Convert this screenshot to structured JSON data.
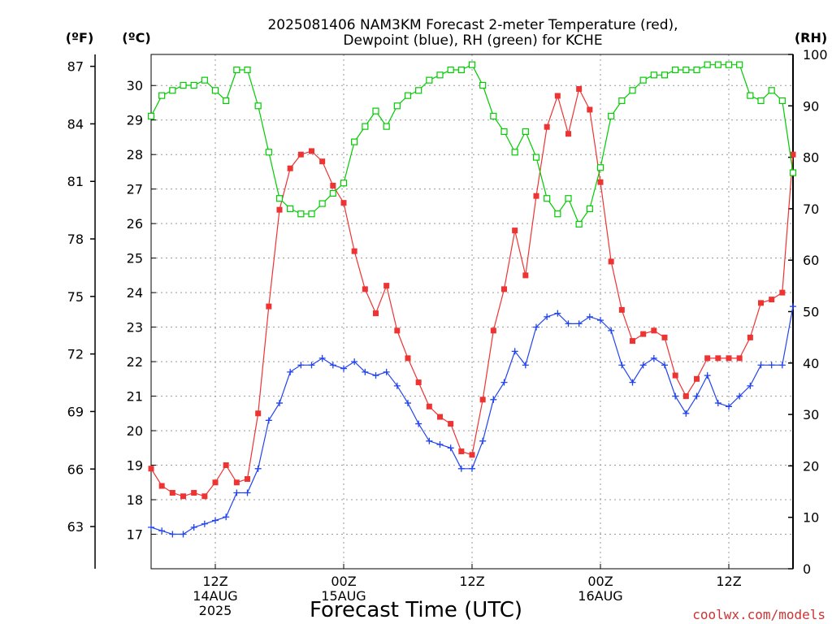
{
  "chart_data": {
    "type": "line",
    "title_line1": "2025081406 NAM3KM Forecast 2-meter Temperature (red),",
    "title_line2": "Dewpoint (blue), RH (green) for KCHE",
    "xlabel": "Forecast Time (UTC)",
    "credit": "coolwx.com/models",
    "axes": {
      "fahrenheit": {
        "label": "(ºF)",
        "ticks": [
          63,
          66,
          69,
          72,
          75,
          78,
          81,
          84,
          87
        ]
      },
      "celsius": {
        "label": "(ºC)",
        "ticks": [
          17,
          18,
          19,
          20,
          21,
          22,
          23,
          24,
          25,
          26,
          27,
          28,
          29,
          30
        ],
        "ylim": [
          16.0,
          30.9
        ]
      },
      "rh": {
        "label": "(RH)",
        "ticks": [
          0,
          10,
          20,
          30,
          40,
          50,
          60,
          70,
          80,
          90,
          100
        ],
        "ylim": [
          0,
          100
        ]
      }
    },
    "x_range_hours": [
      0,
      60
    ],
    "x_ticks": [
      {
        "hour": 6,
        "lines": [
          "12Z",
          "14AUG",
          "2025"
        ]
      },
      {
        "hour": 18,
        "lines": [
          "00Z",
          "15AUG"
        ]
      },
      {
        "hour": 30,
        "lines": [
          "12Z"
        ]
      },
      {
        "hour": 42,
        "lines": [
          "00Z",
          "16AUG"
        ]
      },
      {
        "hour": 54,
        "lines": [
          "12Z"
        ]
      }
    ],
    "grid": true,
    "colors": {
      "temperature": "#ee3333",
      "dewpoint": "#2244ee",
      "rh": "#00cc00",
      "grid": "#999999"
    },
    "series": [
      {
        "key": "temperature",
        "unit": "C",
        "marker": "filled-square",
        "hours": [
          0,
          1,
          2,
          3,
          4,
          5,
          6,
          7,
          8,
          9,
          10,
          11,
          12,
          13,
          14,
          15,
          16,
          17,
          18,
          19,
          20,
          21,
          22,
          23,
          24,
          25,
          26,
          27,
          28,
          29,
          30,
          31,
          32,
          33,
          34,
          35,
          36,
          37,
          38,
          39,
          40,
          41,
          42,
          43,
          44,
          45,
          46,
          47,
          48,
          49,
          50,
          51,
          52,
          53,
          54,
          55,
          56,
          57,
          58,
          59,
          60
        ],
        "values": [
          18.9,
          18.4,
          18.2,
          18.1,
          18.2,
          18.1,
          18.5,
          19.0,
          18.5,
          18.6,
          20.5,
          23.6,
          26.4,
          27.6,
          28.0,
          28.1,
          27.8,
          27.1,
          26.6,
          25.2,
          24.1,
          23.4,
          24.2,
          22.9,
          22.1,
          21.4,
          20.7,
          20.4,
          20.2,
          19.4,
          19.3,
          20.9,
          22.9,
          24.1,
          25.8,
          24.5,
          26.8,
          28.8,
          29.7,
          28.6,
          29.9,
          29.3,
          27.2,
          24.9,
          23.5,
          22.6,
          22.8,
          22.9,
          22.7,
          21.6,
          21.0,
          21.5,
          22.1,
          22.1,
          22.1,
          22.1,
          22.7,
          23.7,
          23.8,
          24.0,
          28.0
        ]
      },
      {
        "key": "dewpoint",
        "unit": "C",
        "marker": "plus",
        "hours": [
          0,
          1,
          2,
          3,
          4,
          5,
          6,
          7,
          8,
          9,
          10,
          11,
          12,
          13,
          14,
          15,
          16,
          17,
          18,
          19,
          20,
          21,
          22,
          23,
          24,
          25,
          26,
          27,
          28,
          29,
          30,
          31,
          32,
          33,
          34,
          35,
          36,
          37,
          38,
          39,
          40,
          41,
          42,
          43,
          44,
          45,
          46,
          47,
          48,
          49,
          50,
          51,
          52,
          53,
          54,
          55,
          56,
          57,
          58,
          59,
          60
        ],
        "values": [
          17.2,
          17.1,
          17.0,
          17.0,
          17.2,
          17.3,
          17.4,
          17.5,
          18.2,
          18.2,
          18.9,
          20.3,
          20.8,
          21.7,
          21.9,
          21.9,
          22.1,
          21.9,
          21.8,
          22.0,
          21.7,
          21.6,
          21.7,
          21.3,
          20.8,
          20.2,
          19.7,
          19.6,
          19.5,
          18.9,
          18.9,
          19.7,
          20.9,
          21.4,
          22.3,
          21.9,
          23.0,
          23.3,
          23.4,
          23.1,
          23.1,
          23.3,
          23.2,
          22.9,
          21.9,
          21.4,
          21.9,
          22.1,
          21.9,
          21.0,
          20.5,
          21.0,
          21.6,
          20.8,
          20.7,
          21.0,
          21.3,
          21.9,
          21.9,
          21.9,
          23.6
        ]
      },
      {
        "key": "rh",
        "unit": "%",
        "marker": "open-square",
        "hours": [
          0,
          1,
          2,
          3,
          4,
          5,
          6,
          7,
          8,
          9,
          10,
          11,
          12,
          13,
          14,
          15,
          16,
          17,
          18,
          19,
          20,
          21,
          22,
          23,
          24,
          25,
          26,
          27,
          28,
          29,
          30,
          31,
          32,
          33,
          34,
          35,
          36,
          37,
          38,
          39,
          40,
          41,
          42,
          43,
          44,
          45,
          46,
          47,
          48,
          49,
          50,
          51,
          52,
          53,
          54,
          55,
          56,
          57,
          58,
          59,
          60
        ],
        "values": [
          88,
          92,
          93,
          94,
          94,
          95,
          93,
          91,
          97,
          97,
          90,
          81,
          72,
          70,
          69,
          69,
          71,
          73,
          75,
          83,
          86,
          89,
          86,
          90,
          92,
          93,
          95,
          96,
          97,
          97,
          98,
          94,
          88,
          85,
          81,
          85,
          80,
          72,
          69,
          72,
          67,
          70,
          78,
          88,
          91,
          93,
          95,
          96,
          96,
          97,
          97,
          97,
          98,
          98,
          98,
          98,
          92,
          91,
          93,
          91,
          77
        ]
      }
    ]
  }
}
